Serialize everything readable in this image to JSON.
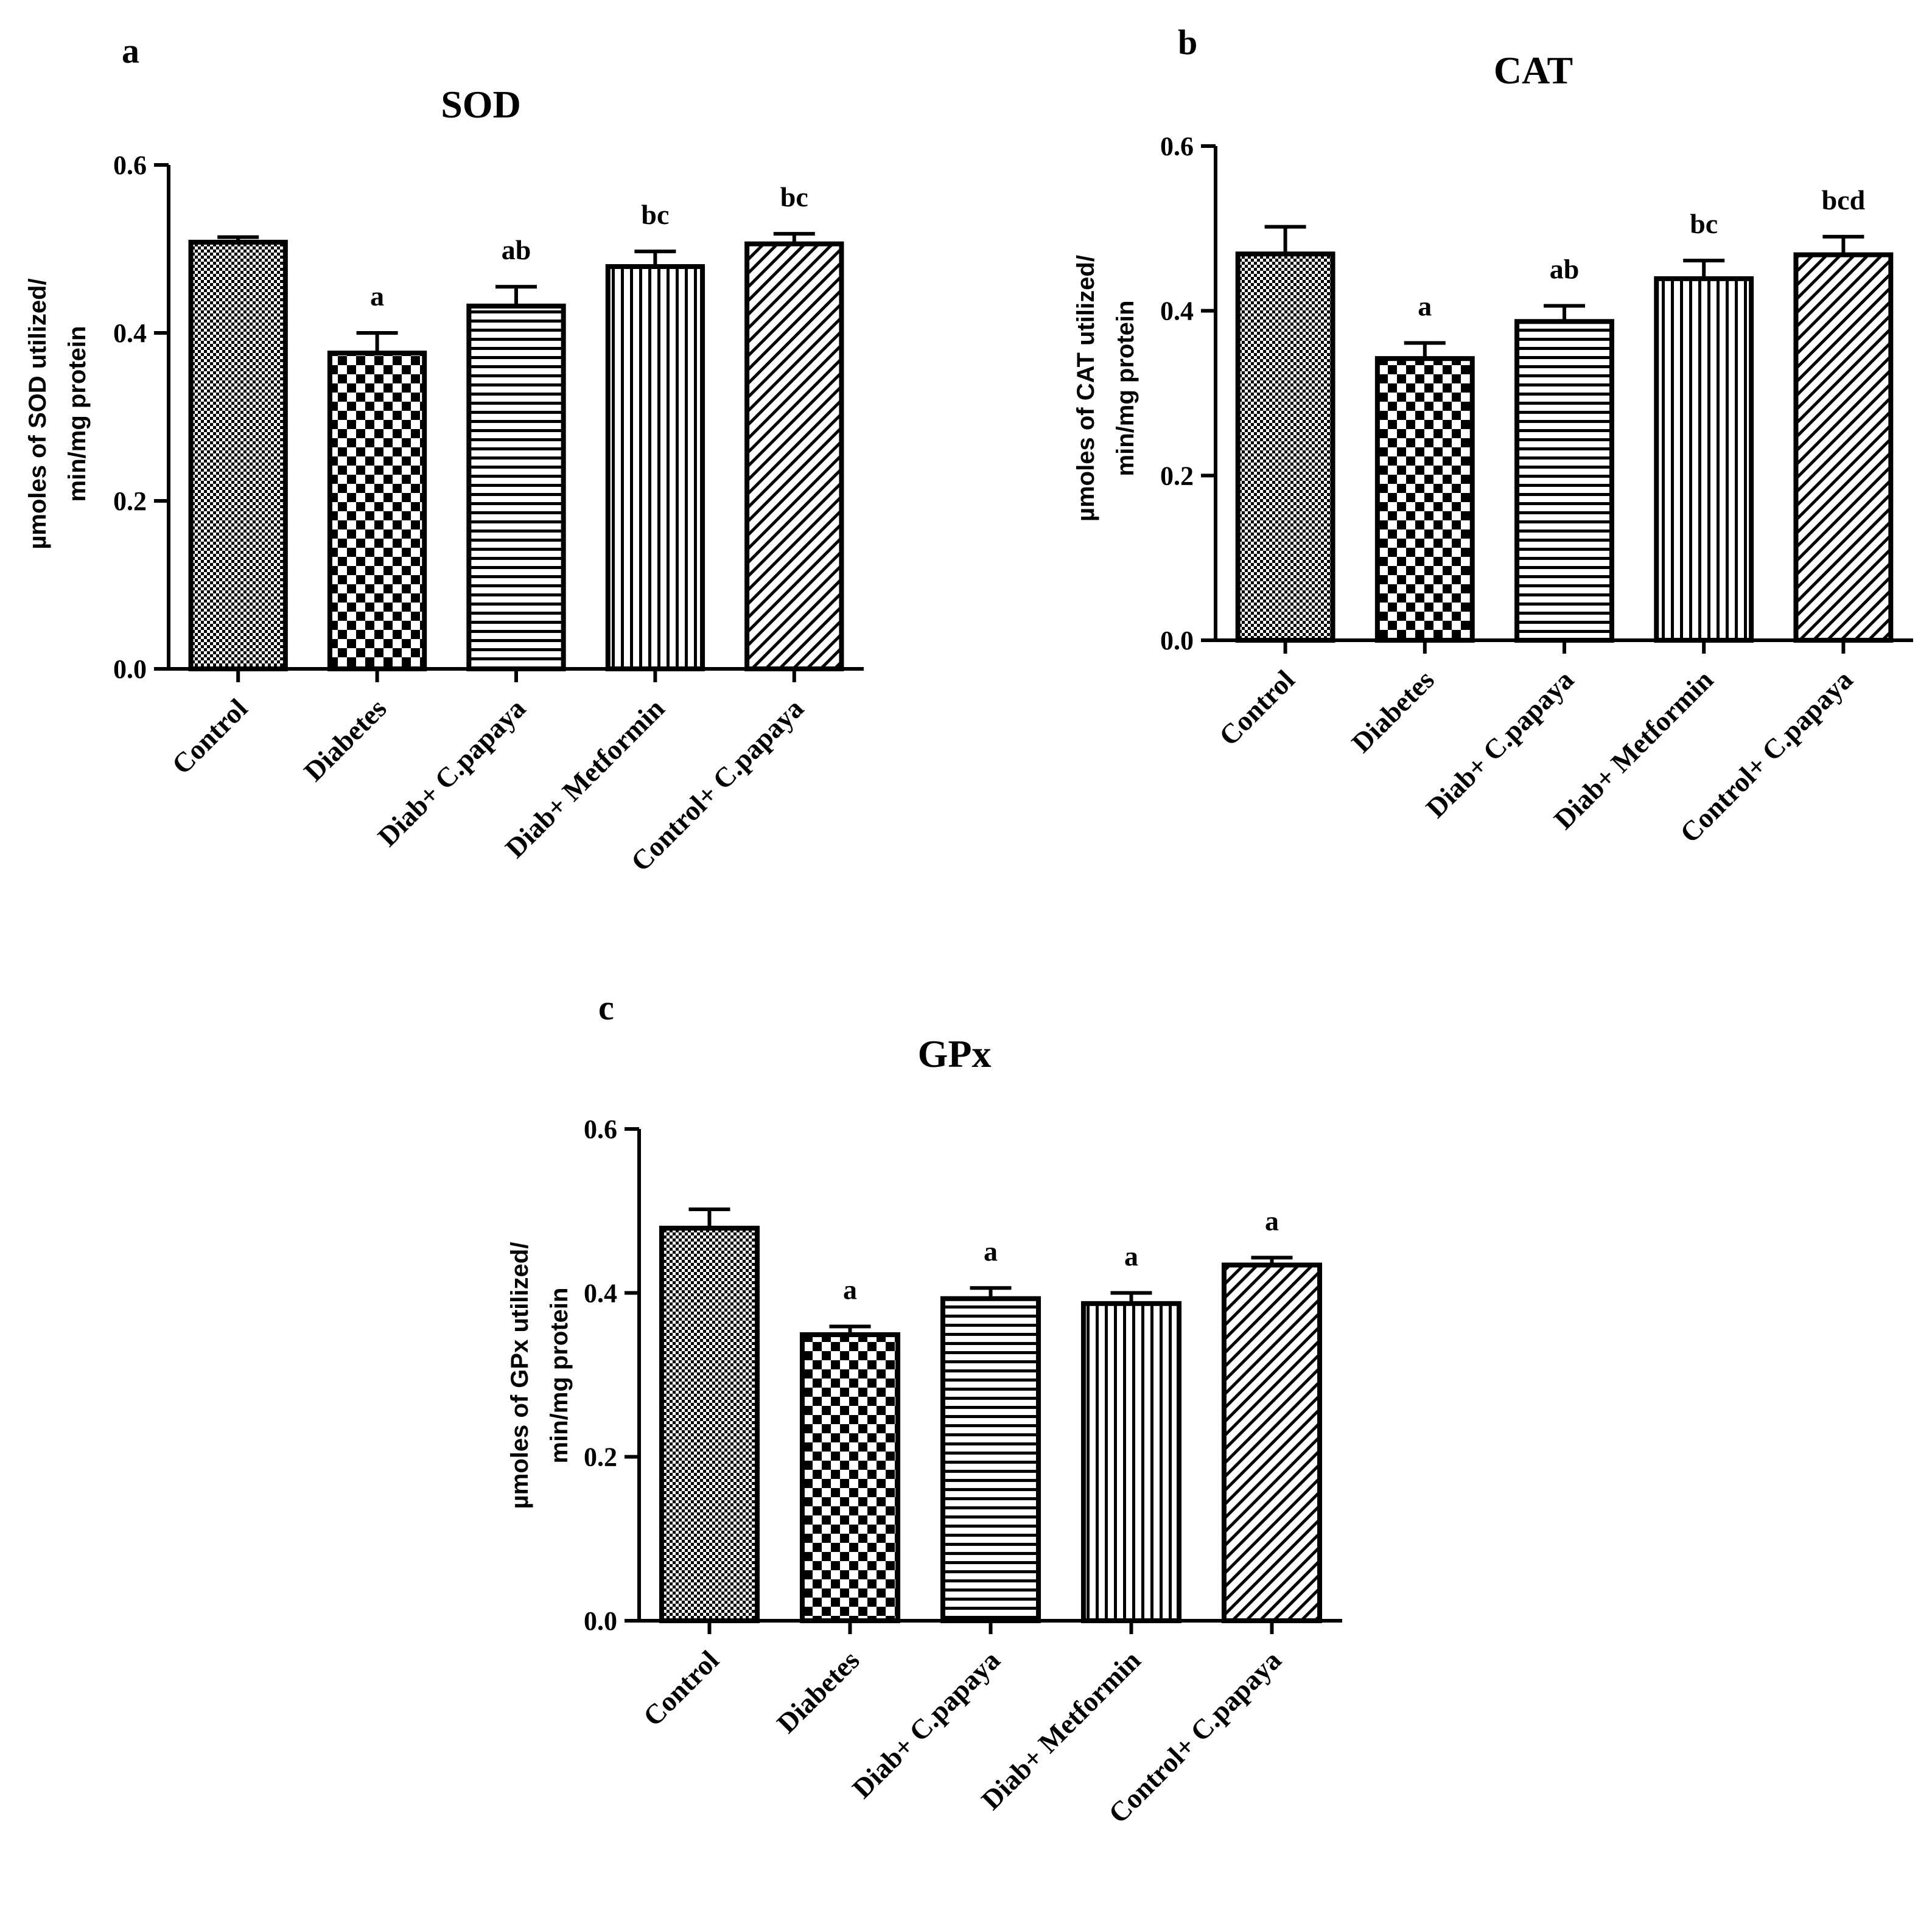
{
  "figure": {
    "panels": [
      "a",
      "b",
      "c"
    ]
  },
  "colors": {
    "ink": "#000000",
    "background": "#ffffff"
  },
  "chart_data": [
    {
      "type": "bar",
      "panel_label": "a",
      "title": "SOD",
      "ylabel_line1": "µmoles of SOD utilized/",
      "ylabel_line2": "min/mg protein",
      "xlabel": "",
      "ylim": [
        0,
        0.6
      ],
      "yticks": [
        0.0,
        0.2,
        0.4,
        0.6
      ],
      "ytick_labels": [
        "0.0",
        "0.2",
        "0.4",
        "0.6"
      ],
      "categories": [
        "Control",
        "Diabetes",
        "Diab+ C.papaya",
        "Diab+ Metformin",
        "Control+ C.papaya"
      ],
      "values": [
        0.508,
        0.376,
        0.432,
        0.479,
        0.506
      ],
      "errors": [
        0.006,
        0.024,
        0.023,
        0.018,
        0.012
      ],
      "annotations": [
        "",
        "a",
        "ab",
        "bc",
        "bc"
      ],
      "patterns": [
        "crosshatch",
        "checker",
        "hlines",
        "vlines",
        "diag"
      ],
      "grid": false
    },
    {
      "type": "bar",
      "panel_label": "b",
      "title": "CAT",
      "ylabel_line1": "µmoles of CAT utilized/",
      "ylabel_line2": "min/mg protein",
      "xlabel": "",
      "ylim": [
        0,
        0.6
      ],
      "yticks": [
        0.0,
        0.2,
        0.4,
        0.6
      ],
      "ytick_labels": [
        "0.0",
        "0.2",
        "0.4",
        "0.6"
      ],
      "categories": [
        "Control",
        "Diabetes",
        "Diab+ C.papaya",
        "Diab+ Metformin",
        "Control+ C.papaya"
      ],
      "values": [
        0.469,
        0.342,
        0.387,
        0.439,
        0.468
      ],
      "errors": [
        0.033,
        0.019,
        0.019,
        0.022,
        0.022
      ],
      "annotations": [
        "",
        "a",
        "ab",
        "bc",
        "bcd"
      ],
      "patterns": [
        "crosshatch",
        "checker",
        "hlines",
        "vlines",
        "diag"
      ],
      "grid": false
    },
    {
      "type": "bar",
      "panel_label": "c",
      "title": "GPx",
      "ylabel_line1": "µmoles of GPx utilized/",
      "ylabel_line2": "min/mg protein",
      "xlabel": "",
      "ylim": [
        0,
        0.6
      ],
      "yticks": [
        0.0,
        0.2,
        0.4,
        0.6
      ],
      "ytick_labels": [
        "0.0",
        "0.2",
        "0.4",
        "0.6"
      ],
      "categories": [
        "Control",
        "Diabetes",
        "Diab+ C.papaya",
        "Diab+ Metformin",
        "Control+ C.papaya"
      ],
      "values": [
        0.479,
        0.349,
        0.393,
        0.387,
        0.434
      ],
      "errors": [
        0.023,
        0.01,
        0.013,
        0.013,
        0.009
      ],
      "annotations": [
        "",
        "a",
        "a",
        "a",
        "a"
      ],
      "patterns": [
        "crosshatch",
        "checker",
        "hlines",
        "vlines",
        "diag"
      ],
      "grid": false
    }
  ]
}
